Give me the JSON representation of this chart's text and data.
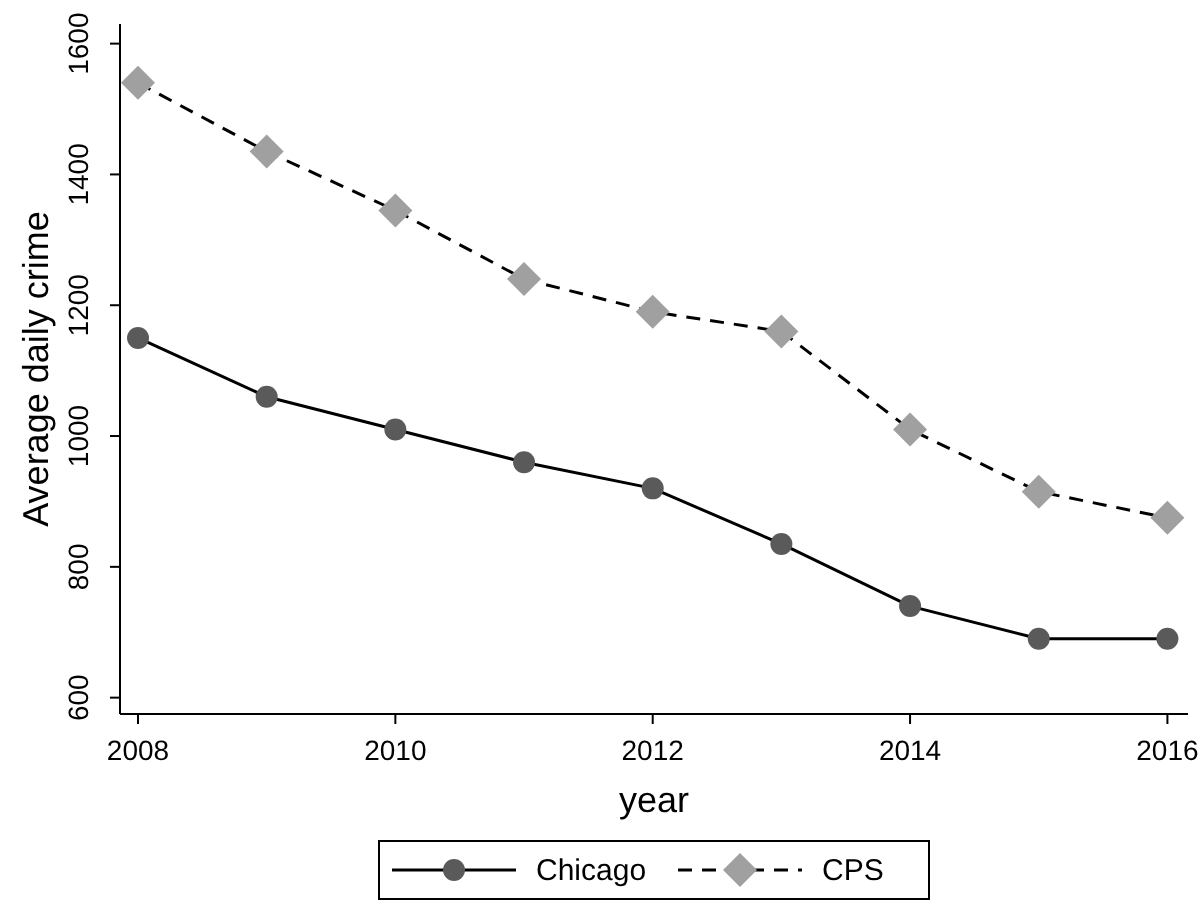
{
  "chart_data": {
    "type": "line",
    "xlabel": "year",
    "ylabel": "Average daily crime",
    "x": [
      2008,
      2009,
      2010,
      2011,
      2012,
      2013,
      2014,
      2015,
      2016
    ],
    "xlim": [
      2007.86,
      2016.16
    ],
    "xticks": [
      2008,
      2010,
      2012,
      2014,
      2016
    ],
    "ylim": [
      575,
      1630
    ],
    "yticks": [
      600,
      800,
      1000,
      1200,
      1400,
      1600
    ],
    "grid": false,
    "legend": "bottom",
    "series": [
      {
        "name": "Chicago",
        "color": "#5a5a5a",
        "marker": "circle",
        "line_style": "solid",
        "values": [
          1150,
          1060,
          1010,
          960,
          920,
          835,
          740,
          690,
          690
        ]
      },
      {
        "name": "CPS",
        "color": "#a0a0a0",
        "marker": "diamond",
        "line_style": "dashed",
        "values": [
          1540,
          1435,
          1345,
          1240,
          1190,
          1160,
          1010,
          915,
          875
        ]
      }
    ]
  }
}
